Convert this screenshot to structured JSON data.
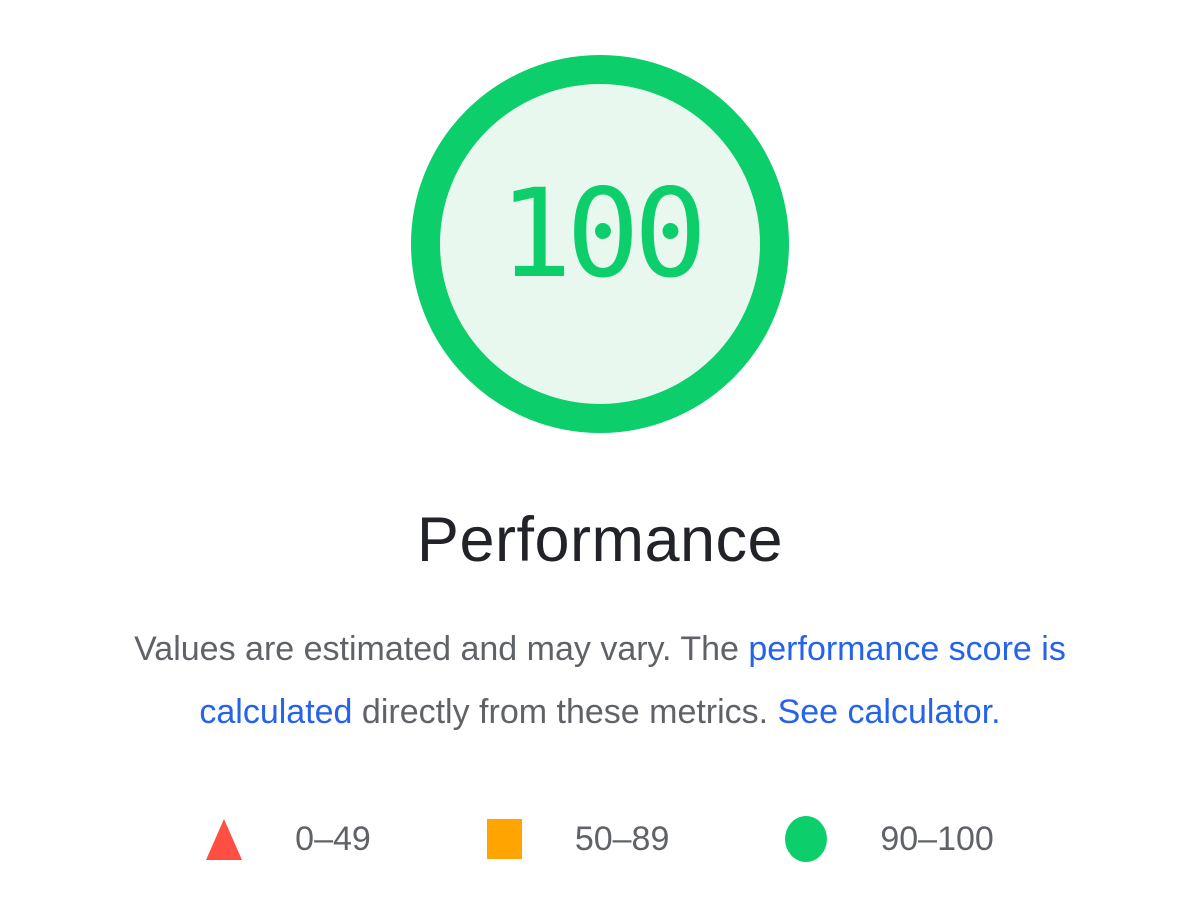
{
  "colors": {
    "pass_green": "#0cce6b",
    "gauge_fill": "#e8f8ef",
    "average_orange": "#ffa400",
    "fail_red": "#ff4e42",
    "link_blue": "#2563eb",
    "text_grey": "#5f6368",
    "heading_dark": "#212329",
    "page_bg": "#ffffff"
  },
  "gauge": {
    "score": "100",
    "label": "Performance"
  },
  "description": {
    "line1_plain": "Values are estimated and may vary. The ",
    "line1_link": "performance score is",
    "line2_link": "calculated",
    "line2_plain": " directly from these metrics. ",
    "line2_link2": "See calculator."
  },
  "legend": {
    "items": [
      {
        "icon": "fail-triangle-icon",
        "shape": "triangle",
        "color": "#ff4e42",
        "label": "0–49"
      },
      {
        "icon": "average-square-icon",
        "shape": "square",
        "color": "#ffa400",
        "label": "50–89"
      },
      {
        "icon": "pass-circle-icon",
        "shape": "circle",
        "color": "#0cce6b",
        "label": "90–100"
      }
    ]
  }
}
